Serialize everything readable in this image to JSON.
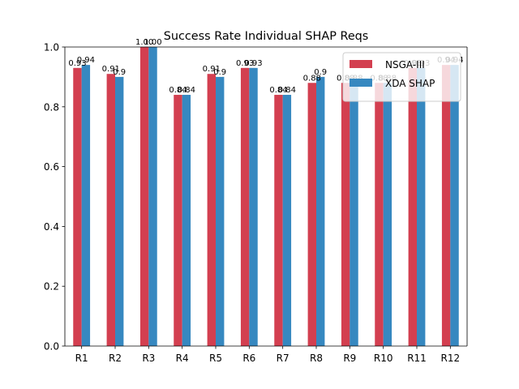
{
  "chart_data": {
    "type": "bar",
    "title": "Success Rate Individual SHAP Reqs",
    "xlabel": "",
    "ylabel": "",
    "categories": [
      "R1",
      "R2",
      "R3",
      "R4",
      "R5",
      "R6",
      "R7",
      "R8",
      "R9",
      "R10",
      "R11",
      "R12"
    ],
    "ylim": [
      0,
      1.0
    ],
    "yticks": [
      "0.0",
      "0.2",
      "0.4",
      "0.6",
      "0.8",
      "1.0"
    ],
    "series": [
      {
        "name": "NSGA-III",
        "color": "#d33f50",
        "values": [
          0.93,
          0.91,
          1.0,
          0.84,
          0.91,
          0.93,
          0.84,
          0.88,
          0.88,
          0.88,
          0.93,
          0.94
        ],
        "labels": [
          "0.93",
          "0.91",
          "1.00",
          "0.84",
          "0.91",
          "0.93",
          "0.84",
          "0.88",
          "0.88",
          "0.88",
          "0.93",
          "0.94"
        ]
      },
      {
        "name": "XDA SHAP",
        "color": "#3688c0",
        "values": [
          0.94,
          0.9,
          1.0,
          0.84,
          0.9,
          0.93,
          0.84,
          0.9,
          0.88,
          0.88,
          0.93,
          0.94
        ],
        "labels": [
          "0.94",
          "0.9",
          "1.00",
          "0.84",
          "0.9",
          "0.93",
          "0.84",
          "0.9",
          "0.88",
          "0.88",
          "0.93",
          "0.94"
        ]
      }
    ],
    "grid": false,
    "legend_position": "top-right"
  }
}
